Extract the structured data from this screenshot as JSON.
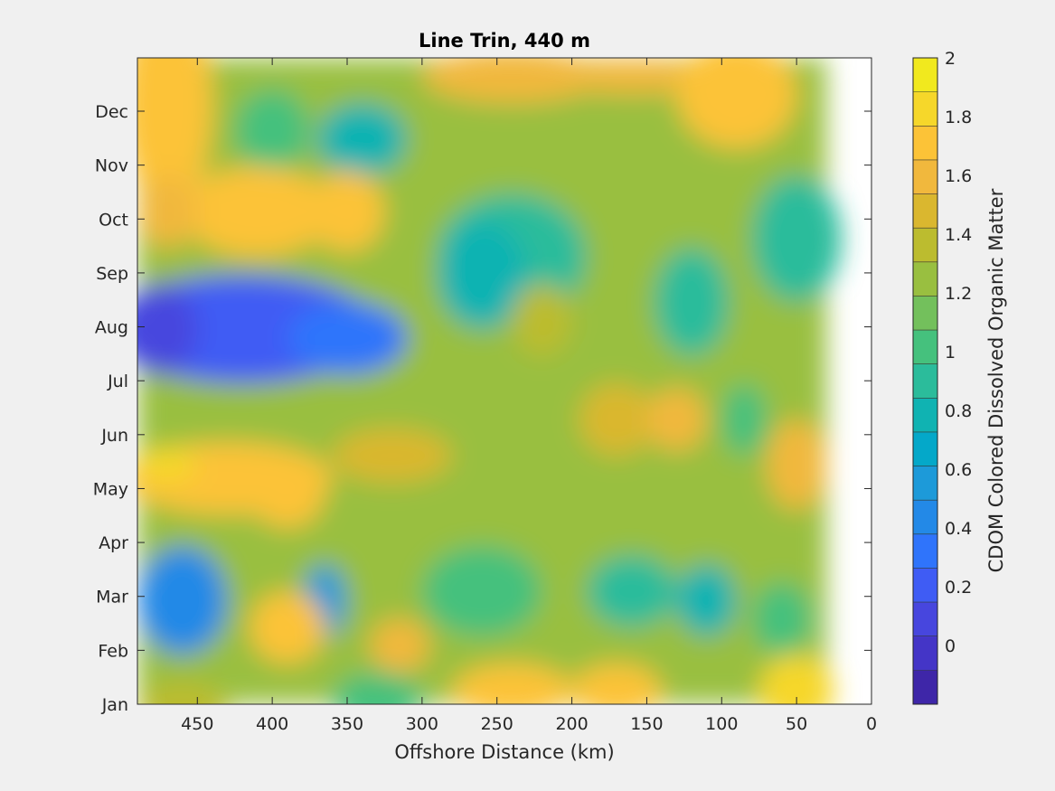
{
  "chart_data": {
    "type": "heatmap",
    "title": "Line Trin, 440 m",
    "xlabel": "Offshore Distance (km)",
    "ylabel": "",
    "colorbar_label": "CDOM Colored Dissolved Organic Matter",
    "xlim": [
      490,
      0
    ],
    "x_reversed": true,
    "x_ticks": [
      450,
      400,
      350,
      300,
      250,
      200,
      150,
      100,
      50,
      0
    ],
    "y_ticks": [
      "Jan",
      "Feb",
      "Mar",
      "Apr",
      "May",
      "Jun",
      "Jul",
      "Aug",
      "Sep",
      "Oct",
      "Nov",
      "Dec"
    ],
    "colorbar_ticks": [
      0,
      0.2,
      0.4,
      0.6,
      0.8,
      1,
      1.2,
      1.4,
      1.6,
      1.8,
      2
    ],
    "clim": [
      -0.2,
      2
    ],
    "data_x_range": [
      490,
      30
    ],
    "colormap": [
      "#3e26a8",
      "#4435c7",
      "#4746de",
      "#3f5cf4",
      "#2f74fb",
      "#2389e7",
      "#1d9ad9",
      "#04a8c9",
      "#10b3b2",
      "#2bbc9b",
      "#45c17d",
      "#73c05c",
      "#99bf40",
      "#bcbc2f",
      "#dab72f",
      "#f1b83d",
      "#fcc337",
      "#f6d72a",
      "#f1e91e"
    ],
    "grid": false
  }
}
